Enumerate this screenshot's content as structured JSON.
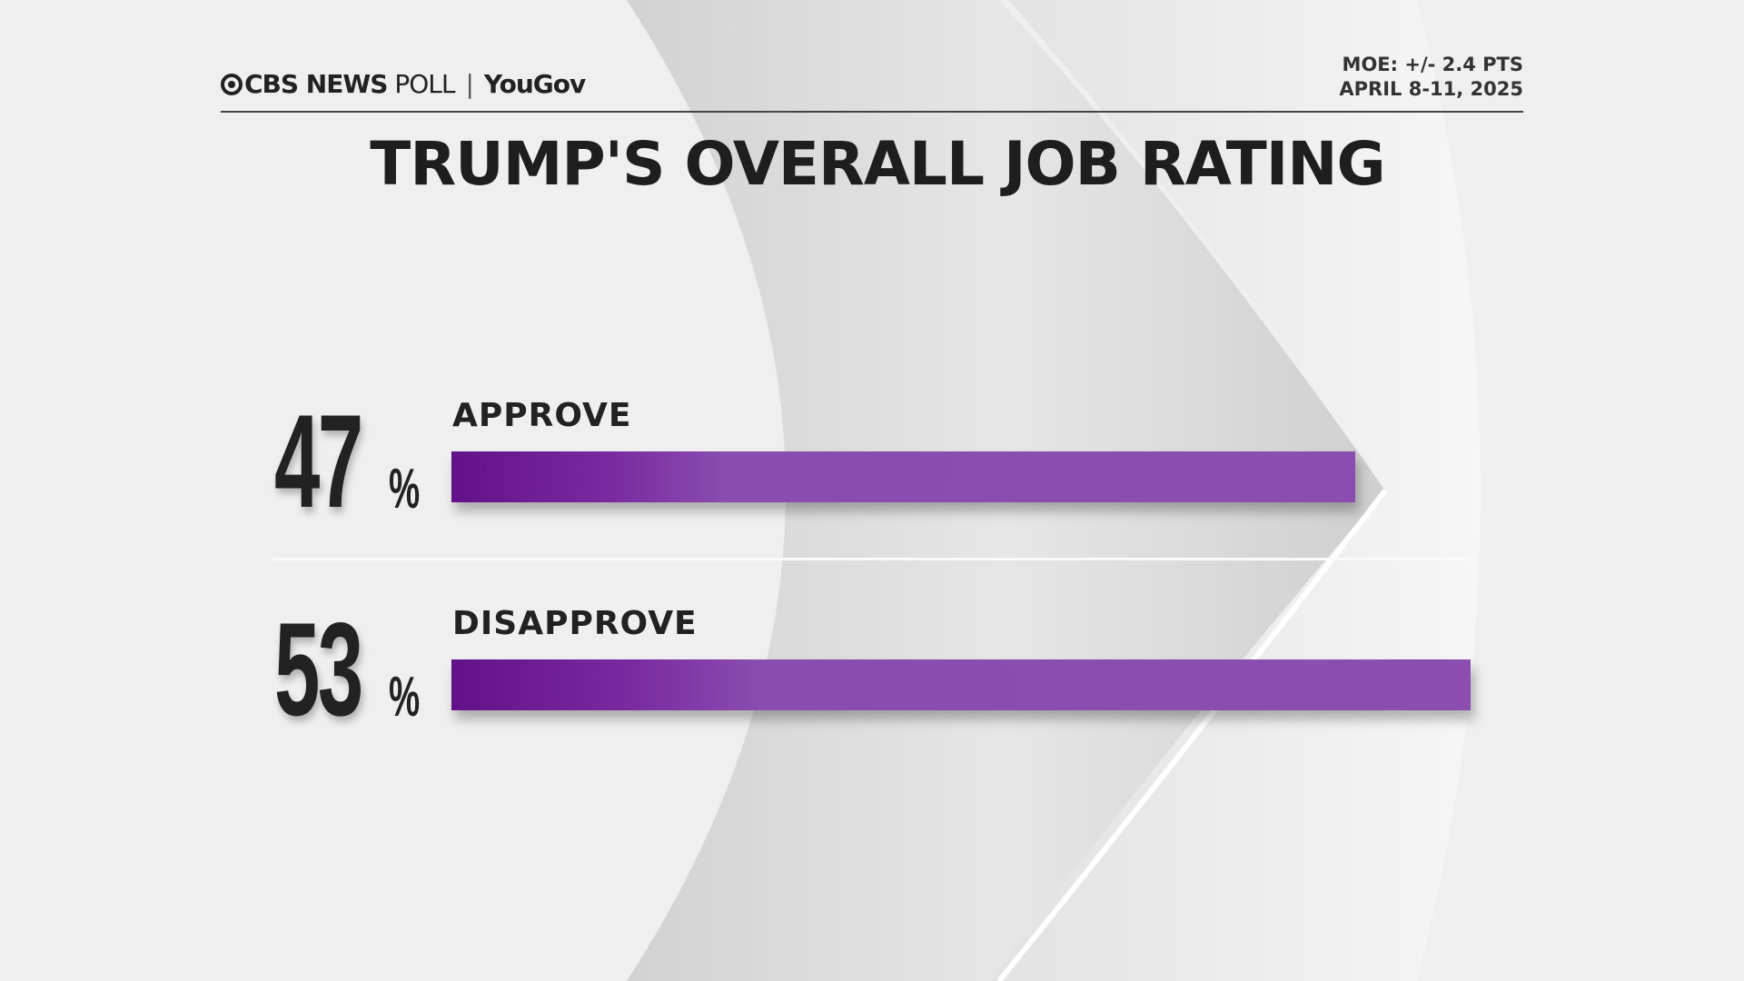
{
  "header": {
    "brand": "CBS NEWS",
    "brand_suffix": "POLL",
    "partner": "YouGov",
    "moe": "MOE: +/- 2.4 PTS",
    "dates": "APRIL 8-11, 2025"
  },
  "chart_data": {
    "type": "bar",
    "orientation": "horizontal",
    "title": "TRUMP'S OVERALL JOB RATING",
    "categories": [
      "APPROVE",
      "DISAPPROVE"
    ],
    "values": [
      47,
      53
    ],
    "value_labels": [
      "47",
      "53"
    ],
    "unit": "%",
    "bar_color": "#8c4cb0",
    "bar_gradient_start": "#63118a"
  }
}
